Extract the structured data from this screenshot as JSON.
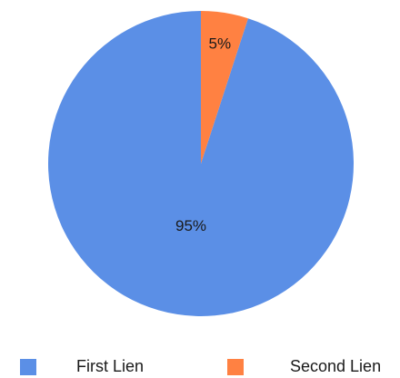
{
  "chart_data": {
    "type": "pie",
    "title": "",
    "slices": [
      {
        "label": "First Lien",
        "value": 95,
        "display": "95%",
        "color": "#5B8FE6"
      },
      {
        "label": "Second Lien",
        "value": 5,
        "display": "5%",
        "color": "#FF8142"
      }
    ],
    "start_angle_deg": 0,
    "direction": "counterclockwise",
    "legend_position": "bottom"
  }
}
